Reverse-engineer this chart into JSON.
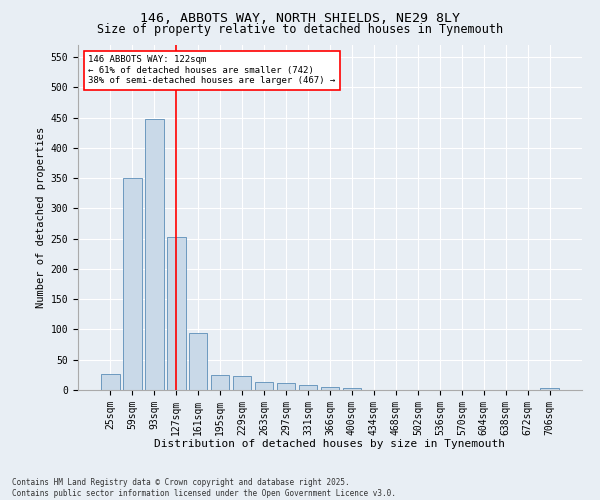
{
  "title": "146, ABBOTS WAY, NORTH SHIELDS, NE29 8LY",
  "subtitle": "Size of property relative to detached houses in Tynemouth",
  "xlabel": "Distribution of detached houses by size in Tynemouth",
  "ylabel": "Number of detached properties",
  "categories": [
    "25sqm",
    "59sqm",
    "93sqm",
    "127sqm",
    "161sqm",
    "195sqm",
    "229sqm",
    "263sqm",
    "297sqm",
    "331sqm",
    "366sqm",
    "400sqm",
    "434sqm",
    "468sqm",
    "502sqm",
    "536sqm",
    "570sqm",
    "604sqm",
    "638sqm",
    "672sqm",
    "706sqm"
  ],
  "values": [
    27,
    350,
    448,
    252,
    95,
    24,
    23,
    13,
    11,
    8,
    5,
    4,
    0,
    0,
    0,
    0,
    0,
    0,
    0,
    0,
    4
  ],
  "bar_color": "#c9d9e8",
  "bar_edge_color": "#5b8db8",
  "vline_x_index": 3,
  "vline_color": "red",
  "annotation_text": "146 ABBOTS WAY: 122sqm\n← 61% of detached houses are smaller (742)\n38% of semi-detached houses are larger (467) →",
  "annotation_box_color": "white",
  "annotation_box_edge_color": "red",
  "ylim": [
    0,
    570
  ],
  "yticks": [
    0,
    50,
    100,
    150,
    200,
    250,
    300,
    350,
    400,
    450,
    500,
    550
  ],
  "background_color": "#e8eef4",
  "plot_background_color": "#e8eef4",
  "grid_color": "white",
  "title_fontsize": 9.5,
  "subtitle_fontsize": 8.5,
  "tick_fontsize": 7,
  "ylabel_fontsize": 7.5,
  "xlabel_fontsize": 8,
  "footer_text": "Contains HM Land Registry data © Crown copyright and database right 2025.\nContains public sector information licensed under the Open Government Licence v3.0."
}
